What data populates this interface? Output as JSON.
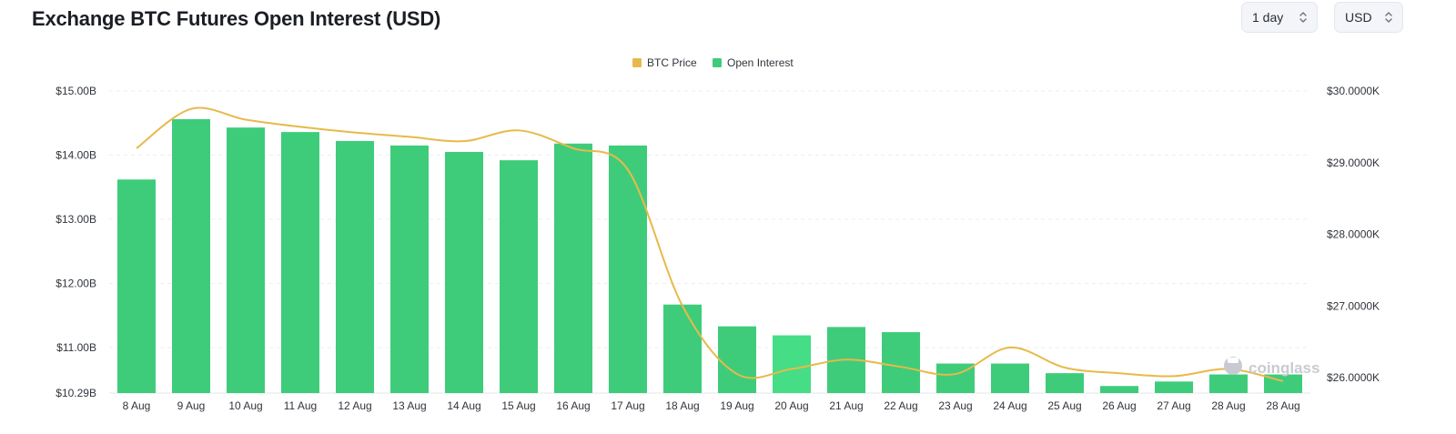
{
  "header": {
    "title": "Exchange BTC Futures Open Interest (USD)",
    "interval_select": "1 day",
    "currency_select": "USD"
  },
  "watermark": "coinglass",
  "chart_data": {
    "type": "bar",
    "title": "Exchange BTC Futures Open Interest (USD)",
    "categories": [
      "8 Aug",
      "9 Aug",
      "10 Aug",
      "11 Aug",
      "12 Aug",
      "13 Aug",
      "14 Aug",
      "15 Aug",
      "16 Aug",
      "17 Aug",
      "18 Aug",
      "19 Aug",
      "20 Aug",
      "21 Aug",
      "22 Aug",
      "23 Aug",
      "24 Aug",
      "25 Aug",
      "26 Aug",
      "27 Aug",
      "28 Aug",
      "28 Aug"
    ],
    "series": [
      {
        "name": "Open Interest",
        "type": "bar",
        "axis": "left",
        "color": "#3ecc7b",
        "values": [
          13.62,
          14.56,
          14.43,
          14.36,
          14.22,
          14.15,
          14.05,
          13.92,
          14.18,
          14.15,
          11.67,
          11.33,
          11.19,
          11.32,
          11.24,
          10.75,
          10.75,
          10.6,
          10.4,
          10.47,
          10.58,
          10.58
        ]
      },
      {
        "name": "BTC Price",
        "type": "line",
        "axis": "right",
        "color": "#e8b94a",
        "values": [
          29.2,
          29.75,
          29.6,
          29.5,
          29.42,
          29.36,
          29.3,
          29.45,
          29.2,
          28.9,
          27.0,
          26.05,
          26.12,
          26.25,
          26.15,
          26.05,
          26.42,
          26.14,
          26.06,
          26.02,
          26.12,
          25.95
        ]
      }
    ],
    "y_left": {
      "ticks": [
        "$10.29B",
        "$11.00B",
        "$12.00B",
        "$13.00B",
        "$14.00B",
        "$15.00B"
      ],
      "tick_values": [
        10.29,
        11,
        12,
        13,
        14,
        15
      ],
      "range": [
        10.29,
        15.0
      ]
    },
    "y_right": {
      "ticks": [
        "$26.0000K",
        "$27.0000K",
        "$28.0000K",
        "$29.0000K",
        "$30.0000K"
      ],
      "tick_values": [
        26,
        27,
        28,
        29,
        30
      ],
      "range": [
        25.8,
        30.0
      ]
    },
    "legend": {
      "position": "top-center",
      "items": [
        "BTC Price",
        "Open Interest"
      ]
    },
    "grid": true
  }
}
